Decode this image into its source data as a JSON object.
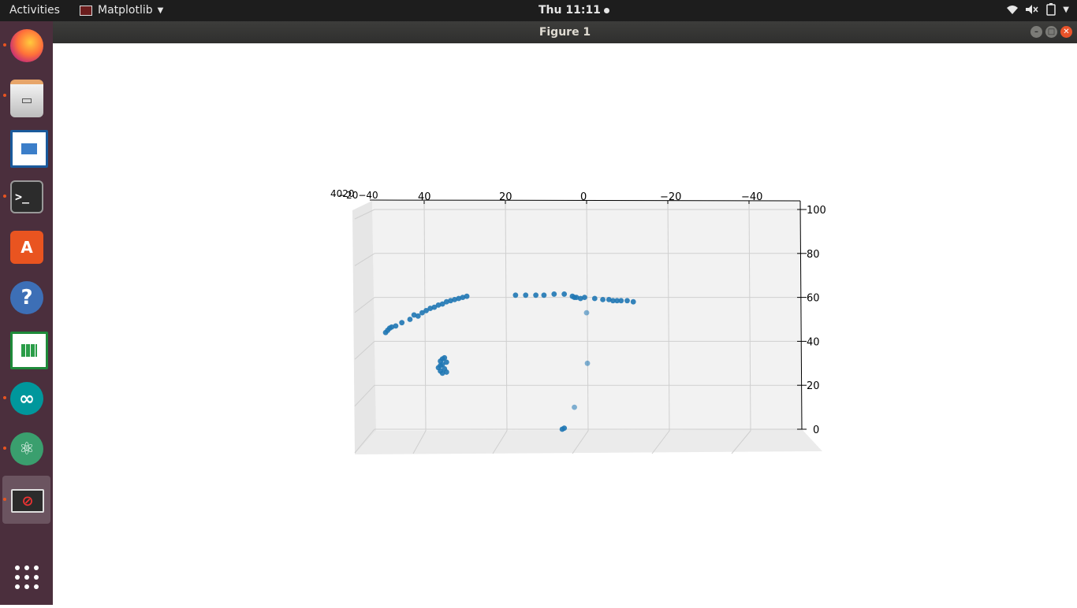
{
  "topbar": {
    "activities": "Activities",
    "app_name": "Matplotlib",
    "clock": "Thu 11:11"
  },
  "window": {
    "title": "Figure 1"
  },
  "dock": {
    "items": [
      {
        "name": "firefox",
        "icon": "firefox-icon",
        "running": true
      },
      {
        "name": "files",
        "icon": "file-cabinet-icon",
        "running": true
      },
      {
        "name": "writer",
        "icon": "document-icon",
        "running": false
      },
      {
        "name": "terminal",
        "icon": "terminal-icon",
        "running": true
      },
      {
        "name": "software",
        "icon": "shopping-bag-icon",
        "running": false
      },
      {
        "name": "help",
        "icon": "help-icon",
        "running": false
      },
      {
        "name": "calc",
        "icon": "spreadsheet-icon",
        "running": false
      },
      {
        "name": "arduino",
        "icon": "infinity-icon",
        "running": true
      },
      {
        "name": "atom",
        "icon": "atom-icon",
        "running": true
      },
      {
        "name": "matplotlib",
        "icon": "no-entry-window-icon",
        "running": true
      }
    ]
  },
  "chart_data": {
    "type": "scatter",
    "title": "",
    "xlabel": "",
    "ylabel": "",
    "zlabel": "",
    "x_ticks": [
      "40",
      "20",
      "0",
      "−20",
      "−40"
    ],
    "z_ticks": [
      "100",
      "80",
      "60",
      "40",
      "20",
      "0"
    ],
    "y_ticks_overlap": [
      "40",
      "20",
      "0",
      "−20",
      "−40"
    ],
    "xlim": [
      50,
      -52
    ],
    "zlim": [
      0,
      100
    ],
    "grid": true,
    "color": "#1f77b4",
    "points": [
      {
        "x": 49.5,
        "z": 44
      },
      {
        "x": 49,
        "z": 45
      },
      {
        "x": 48.5,
        "z": 46
      },
      {
        "x": 48,
        "z": 46.5
      },
      {
        "x": 47,
        "z": 47
      },
      {
        "x": 45.5,
        "z": 48.5
      },
      {
        "x": 43.5,
        "z": 50
      },
      {
        "x": 42.5,
        "z": 52
      },
      {
        "x": 41.5,
        "z": 51.5
      },
      {
        "x": 40.5,
        "z": 53
      },
      {
        "x": 39.5,
        "z": 54
      },
      {
        "x": 38.5,
        "z": 55
      },
      {
        "x": 37.5,
        "z": 55.5
      },
      {
        "x": 36.5,
        "z": 56.5
      },
      {
        "x": 35.5,
        "z": 57
      },
      {
        "x": 34.5,
        "z": 58
      },
      {
        "x": 33.5,
        "z": 58.5
      },
      {
        "x": 32.5,
        "z": 59
      },
      {
        "x": 31.5,
        "z": 59.5
      },
      {
        "x": 30.5,
        "z": 60
      },
      {
        "x": 29.5,
        "z": 60.5
      },
      {
        "x": 35.5,
        "z": 32
      },
      {
        "x": 35,
        "z": 32.5
      },
      {
        "x": 36,
        "z": 31
      },
      {
        "x": 34.5,
        "z": 30.5
      },
      {
        "x": 35.5,
        "z": 29.5
      },
      {
        "x": 36.5,
        "z": 28
      },
      {
        "x": 35,
        "z": 27.5
      },
      {
        "x": 36,
        "z": 26.5
      },
      {
        "x": 34.5,
        "z": 26
      },
      {
        "x": 35.5,
        "z": 25.5
      },
      {
        "x": 36,
        "z": 29
      },
      {
        "x": 17.5,
        "z": 61
      },
      {
        "x": 15,
        "z": 61
      },
      {
        "x": 12.5,
        "z": 61
      },
      {
        "x": 10.5,
        "z": 61
      },
      {
        "x": 8,
        "z": 61.5
      },
      {
        "x": 5.5,
        "z": 61.5
      },
      {
        "x": 3.5,
        "z": 60.5
      },
      {
        "x": 3,
        "z": 60
      },
      {
        "x": 2.5,
        "z": 60
      },
      {
        "x": 1.5,
        "z": 59.5
      },
      {
        "x": 0.5,
        "z": 60
      },
      {
        "x": -2,
        "z": 59.5
      },
      {
        "x": -4,
        "z": 59
      },
      {
        "x": -5.5,
        "z": 59
      },
      {
        "x": -6.5,
        "z": 58.5
      },
      {
        "x": -7.5,
        "z": 58.5
      },
      {
        "x": -8.5,
        "z": 58.5
      },
      {
        "x": -10,
        "z": 58.5
      },
      {
        "x": -11.5,
        "z": 58
      },
      {
        "x": 0,
        "z": 53
      },
      {
        "x": -0.2,
        "z": 30
      },
      {
        "x": 3,
        "z": 10
      },
      {
        "x": 5.5,
        "z": 0.5
      },
      {
        "x": 6,
        "z": 0
      }
    ]
  }
}
